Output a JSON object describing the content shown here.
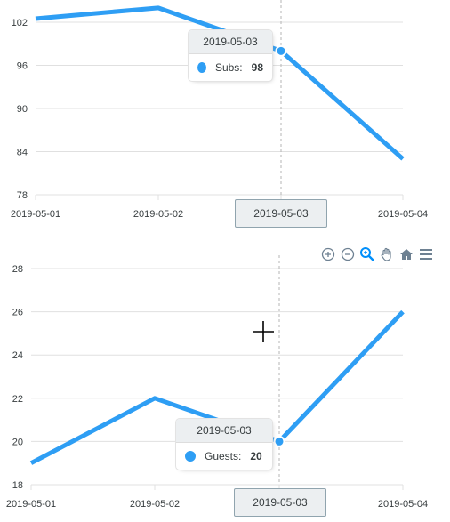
{
  "colors": {
    "series": "#2e9ef4",
    "grid": "#e0e0e0",
    "crosshair": "#b6b6b6"
  },
  "toolbar": {
    "icons": [
      "zoom-in-icon",
      "zoom-out-icon",
      "selection-zoom-icon",
      "pan-hand-icon",
      "reset-home-icon",
      "menu-icon"
    ]
  },
  "chart_data": [
    {
      "type": "line",
      "title": "",
      "xlabel": "",
      "ylabel": "",
      "x": [
        "2019-05-01",
        "2019-05-02",
        "2019-05-03",
        "2019-05-04"
      ],
      "series": [
        {
          "name": "Subs",
          "values": [
            102.5,
            104,
            98,
            83
          ]
        }
      ],
      "ylim": [
        78,
        106
      ],
      "yticks": [
        "78",
        "84",
        "90",
        "96",
        "102"
      ],
      "grid": true,
      "tooltip": {
        "title": "2019-05-03",
        "label": "Subs:",
        "value": "98"
      },
      "xaxis_tooltip": "2019-05-03"
    },
    {
      "type": "line",
      "title": "",
      "xlabel": "",
      "ylabel": "",
      "x": [
        "2019-05-01",
        "2019-05-02",
        "2019-05-03",
        "2019-05-04"
      ],
      "series": [
        {
          "name": "Guests",
          "values": [
            19,
            22,
            20,
            26
          ]
        }
      ],
      "ylim": [
        18,
        28
      ],
      "yticks": [
        "18",
        "20",
        "22",
        "24",
        "26",
        "28"
      ],
      "grid": true,
      "tooltip": {
        "title": "2019-05-03",
        "label": "Guests:",
        "value": "20"
      },
      "xaxis_tooltip": "2019-05-03"
    }
  ]
}
